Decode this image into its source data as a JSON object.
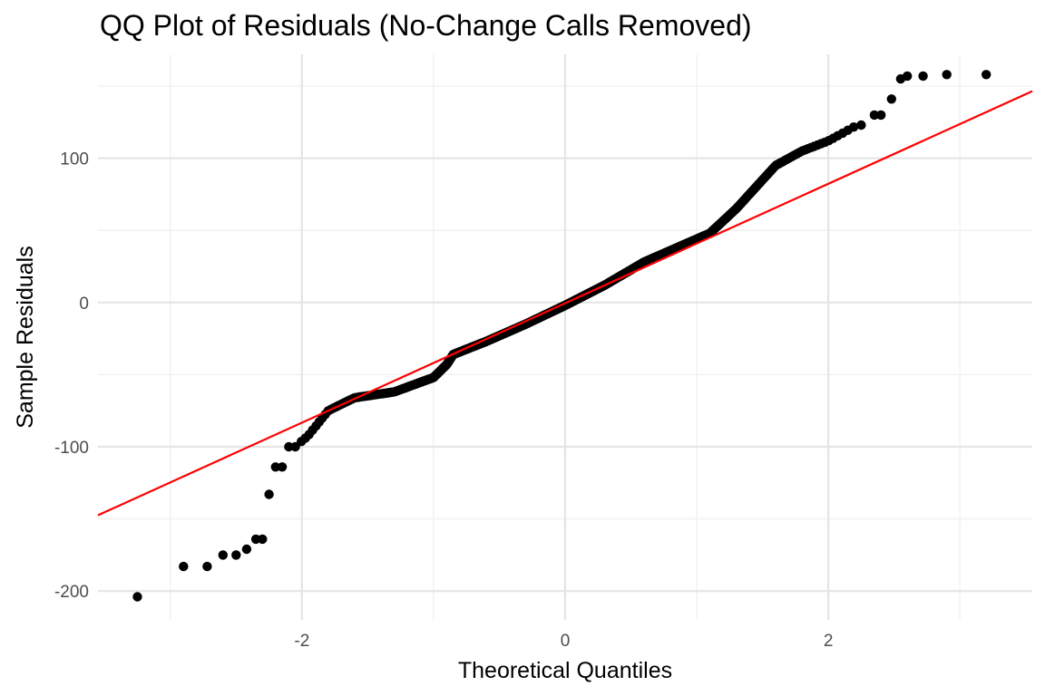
{
  "chart_data": {
    "type": "scatter",
    "title": "QQ Plot of Residuals (No-Change Calls Removed)",
    "xlabel": "Theoretical Quantiles",
    "ylabel": "Sample Residuals",
    "xlim": [
      -3.55,
      3.55
    ],
    "ylim": [
      -220,
      172
    ],
    "x_ticks": [
      -2,
      0,
      2
    ],
    "x_tick_labels": [
      "-2",
      "0",
      "2"
    ],
    "y_ticks": [
      -200,
      -100,
      0,
      100
    ],
    "y_tick_labels": [
      "-200",
      "-100",
      "0",
      "100"
    ],
    "grid": true,
    "legend": "none",
    "reference_line": {
      "slope": 41.4,
      "intercept": -0.5,
      "color": "#ff0000"
    },
    "point_color": "#000000",
    "curve_knots": [
      [
        -3.3,
        -205
      ],
      [
        -3.05,
        -183
      ],
      [
        -2.85,
        -180
      ],
      [
        -2.65,
        -175
      ],
      [
        -2.45,
        -170
      ],
      [
        -2.3,
        -163
      ],
      [
        -2.2,
        -135
      ],
      [
        -2.05,
        -100
      ],
      [
        -1.95,
        -92
      ],
      [
        -1.8,
        -75
      ],
      [
        -1.6,
        -66
      ],
      [
        -1.3,
        -62
      ],
      [
        -1.0,
        -52
      ],
      [
        -0.9,
        -43
      ],
      [
        -0.85,
        -36
      ],
      [
        -0.6,
        -27
      ],
      [
        -0.3,
        -15
      ],
      [
        0,
        -2
      ],
      [
        0.3,
        12
      ],
      [
        0.6,
        28
      ],
      [
        0.9,
        40
      ],
      [
        1.1,
        48
      ],
      [
        1.3,
        65
      ],
      [
        1.45,
        80
      ],
      [
        1.6,
        95
      ],
      [
        1.8,
        105
      ],
      [
        2.0,
        112
      ],
      [
        2.2,
        122
      ],
      [
        2.3,
        125
      ],
      [
        2.4,
        130
      ],
      [
        2.5,
        145
      ],
      [
        2.6,
        157
      ],
      [
        2.75,
        158
      ],
      [
        2.9,
        158
      ],
      [
        3.2,
        159
      ]
    ],
    "tail_points": [
      {
        "x": -3.25,
        "y": -204
      },
      {
        "x": -2.9,
        "y": -183
      },
      {
        "x": -2.72,
        "y": -183
      },
      {
        "x": -2.6,
        "y": -175
      },
      {
        "x": -2.5,
        "y": -175
      },
      {
        "x": -2.42,
        "y": -171
      },
      {
        "x": -2.35,
        "y": -164
      },
      {
        "x": -2.3,
        "y": -164
      },
      {
        "x": -2.25,
        "y": -133
      },
      {
        "x": -2.2,
        "y": -114
      },
      {
        "x": -2.15,
        "y": -114
      },
      {
        "x": -2.1,
        "y": -100
      },
      {
        "x": -2.05,
        "y": -100
      },
      {
        "x": 2.25,
        "y": 123
      },
      {
        "x": 2.35,
        "y": 130
      },
      {
        "x": 2.4,
        "y": 130
      },
      {
        "x": 2.48,
        "y": 141
      },
      {
        "x": 2.55,
        "y": 155
      },
      {
        "x": 2.6,
        "y": 157
      },
      {
        "x": 2.72,
        "y": 157
      },
      {
        "x": 2.9,
        "y": 158
      },
      {
        "x": 3.2,
        "y": 158
      }
    ],
    "n_dense_points": 600
  }
}
